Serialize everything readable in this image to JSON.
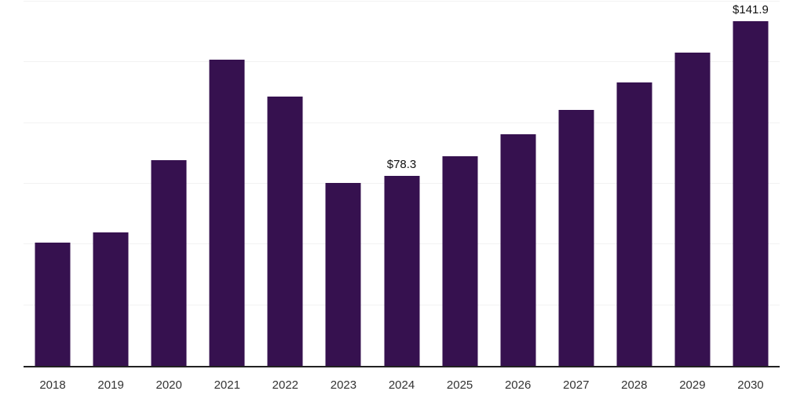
{
  "chart_data": {
    "type": "bar",
    "title": "",
    "xlabel": "",
    "ylabel": "",
    "categories": [
      "2018",
      "2019",
      "2020",
      "2021",
      "2022",
      "2023",
      "2024",
      "2025",
      "2026",
      "2027",
      "2028",
      "2029",
      "2030"
    ],
    "values": [
      50.7,
      55.0,
      84.8,
      126.1,
      110.9,
      75.4,
      78.3,
      86.4,
      95.5,
      105.5,
      116.6,
      129.1,
      141.9
    ],
    "data_labels": {
      "2024": "$78.3",
      "2030": "$141.9"
    },
    "ylim": [
      0,
      150
    ],
    "gridline_step": 25,
    "grid": true,
    "legend": false,
    "colors": {
      "bar": "#36114f",
      "gridline": "#f2f2f2",
      "axis_line": "#222222",
      "tick_label": "#333333",
      "data_label": "#111111",
      "background": "#ffffff"
    }
  }
}
